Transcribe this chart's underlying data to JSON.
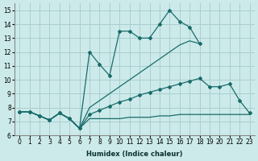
{
  "xlabel": "Humidex (Indice chaleur)",
  "bg_color": "#cceaea",
  "grid_color": "#aacece",
  "line_color": "#1a6b6b",
  "xlim": [
    -0.5,
    23.5
  ],
  "ylim": [
    6,
    15.5
  ],
  "xticks": [
    0,
    1,
    2,
    3,
    4,
    5,
    6,
    7,
    8,
    9,
    10,
    11,
    12,
    13,
    14,
    15,
    16,
    17,
    18,
    19,
    20,
    21,
    22,
    23
  ],
  "yticks": [
    6,
    7,
    8,
    9,
    10,
    11,
    12,
    13,
    14,
    15
  ],
  "line1_x": [
    0,
    1,
    2,
    3,
    4,
    5,
    6,
    7,
    8,
    9,
    10,
    11,
    12,
    13,
    14,
    15,
    16,
    17,
    18,
    19,
    20,
    21,
    22,
    23
  ],
  "line1_y": [
    7.7,
    7.7,
    7.4,
    7.1,
    7.6,
    7.2,
    6.5,
    7.2,
    7.2,
    7.2,
    7.2,
    7.3,
    7.3,
    7.3,
    7.4,
    7.4,
    7.5,
    7.5,
    7.5,
    7.5,
    7.5,
    7.5,
    7.5,
    7.5
  ],
  "line2_x": [
    0,
    1,
    2,
    3,
    4,
    5,
    6,
    7,
    8,
    9,
    10,
    11,
    12,
    13,
    14,
    15,
    16,
    17,
    18,
    19,
    20,
    21,
    22,
    23
  ],
  "line2_y": [
    7.7,
    7.7,
    7.4,
    7.1,
    7.6,
    7.2,
    6.5,
    7.5,
    7.8,
    8.1,
    8.4,
    8.6,
    8.9,
    9.1,
    9.3,
    9.5,
    9.7,
    9.9,
    10.1,
    9.5,
    9.5,
    9.7,
    8.5,
    7.6
  ],
  "line3_x": [
    0,
    1,
    2,
    3,
    4,
    5,
    6,
    7,
    8,
    9,
    10,
    11,
    12,
    13,
    14,
    15,
    16,
    17,
    18
  ],
  "line3_y": [
    7.7,
    7.7,
    7.4,
    7.1,
    7.6,
    7.2,
    6.5,
    8.0,
    8.5,
    9.0,
    9.5,
    10.0,
    10.5,
    11.0,
    11.5,
    12.0,
    12.5,
    12.8,
    12.6
  ],
  "line4_x": [
    0,
    1,
    2,
    3,
    4,
    5,
    6,
    7,
    8,
    9,
    10,
    11,
    12,
    13,
    14,
    15,
    16,
    17,
    18
  ],
  "line4_y": [
    7.7,
    7.7,
    7.4,
    7.1,
    7.6,
    7.2,
    6.5,
    12.0,
    11.1,
    10.3,
    13.5,
    13.5,
    13.0,
    13.0,
    14.0,
    15.0,
    14.2,
    13.8,
    12.6
  ]
}
